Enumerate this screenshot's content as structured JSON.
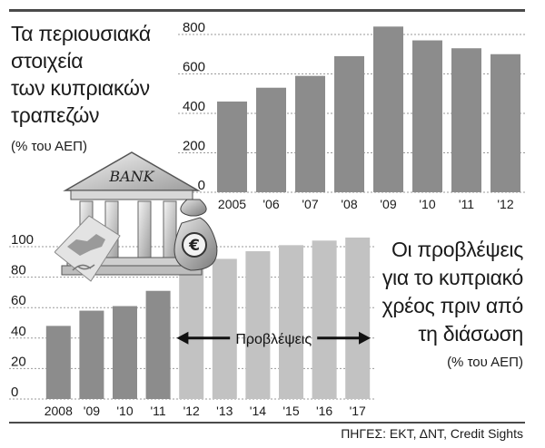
{
  "headline1": {
    "lines": [
      "Τα περιουσιακά",
      "στοιχεία",
      "των κυπριακών",
      "τραπεζών"
    ],
    "unit": "(% του ΑΕΠ)"
  },
  "headline2": {
    "lines": [
      "Οι προβλέψεις",
      "για το κυπριακό",
      "χρέος πριν από",
      "τη διάσωση"
    ],
    "unit": "(% του ΑΕΠ)"
  },
  "source": "ΠΗΓΕΣ: ΕΚΤ, ΔΝΤ, Credit Sights",
  "forecast_label": "Προβλέψεις",
  "illustration": {
    "bank_sign": "BANK",
    "currency_icon": "euro-money-bag-icon",
    "map_icon": "cyprus-map-icon"
  },
  "colors": {
    "bar_actual": "#8c8c8c",
    "bar_forecast": "#c2c2c2",
    "grid": "#9a9a9a",
    "rule": "#4a4a4a"
  },
  "chart_data": [
    {
      "type": "bar",
      "title": "Τα περιουσιακά στοιχεία των κυπριακών τραπεζών",
      "ylabel": "(% του ΑΕΠ)",
      "categories": [
        "2005",
        "'06",
        "'07",
        "'08",
        "'09",
        "'10",
        "'11",
        "'12"
      ],
      "values": [
        460,
        530,
        590,
        690,
        840,
        770,
        730,
        700
      ],
      "ylim": [
        0,
        800
      ],
      "yticks": [
        0,
        200,
        400,
        600,
        800
      ],
      "grid": true
    },
    {
      "type": "bar",
      "title": "Οι προβλέψεις για το κυπριακό χρέος πριν από τη διάσωση",
      "ylabel": "(% του ΑΕΠ)",
      "categories": [
        "2008",
        "'09",
        "'10",
        "'11",
        "'12",
        "'13",
        "'14",
        "'15",
        "'16",
        "'17"
      ],
      "values": [
        48,
        58,
        61,
        71,
        86,
        92,
        97,
        101,
        104,
        106
      ],
      "forecast_from": "'12",
      "ylim": [
        0,
        100
      ],
      "yticks": [
        0,
        20,
        40,
        60,
        80,
        100
      ],
      "grid": true
    }
  ]
}
